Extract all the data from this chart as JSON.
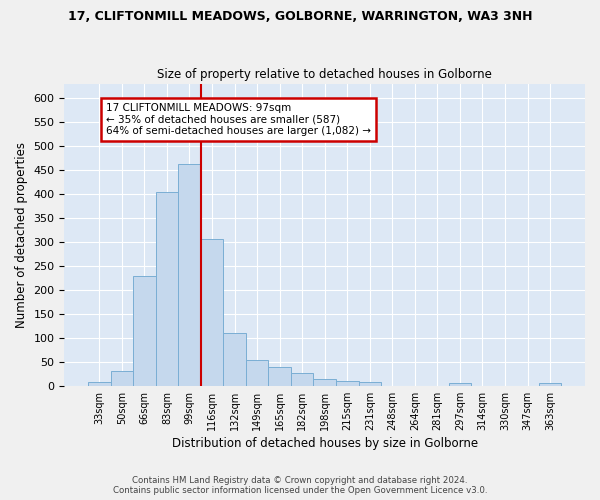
{
  "title1": "17, CLIFTONMILL MEADOWS, GOLBORNE, WARRINGTON, WA3 3NH",
  "title2": "Size of property relative to detached houses in Golborne",
  "xlabel": "Distribution of detached houses by size in Golborne",
  "ylabel": "Number of detached properties",
  "categories": [
    "33sqm",
    "50sqm",
    "66sqm",
    "83sqm",
    "99sqm",
    "116sqm",
    "132sqm",
    "149sqm",
    "165sqm",
    "182sqm",
    "198sqm",
    "215sqm",
    "231sqm",
    "248sqm",
    "264sqm",
    "281sqm",
    "297sqm",
    "314sqm",
    "330sqm",
    "347sqm",
    "363sqm"
  ],
  "values": [
    7,
    30,
    228,
    403,
    463,
    305,
    110,
    53,
    39,
    27,
    14,
    11,
    7,
    0,
    0,
    0,
    5,
    0,
    0,
    0,
    5
  ],
  "bar_color": "#c5d8ed",
  "bar_edge_color": "#7aaed4",
  "background_color": "#dde8f5",
  "grid_color": "#ffffff",
  "vline_x_index": 5,
  "annotation_text": "17 CLIFTONMILL MEADOWS: 97sqm\n← 35% of detached houses are smaller (587)\n64% of semi-detached houses are larger (1,082) →",
  "annotation_box_color": "#ffffff",
  "annotation_box_edge": "#cc0000",
  "ylim": [
    0,
    630
  ],
  "yticks": [
    0,
    50,
    100,
    150,
    200,
    250,
    300,
    350,
    400,
    450,
    500,
    550,
    600
  ],
  "footer1": "Contains HM Land Registry data © Crown copyright and database right 2024.",
  "footer2": "Contains public sector information licensed under the Open Government Licence v3.0."
}
